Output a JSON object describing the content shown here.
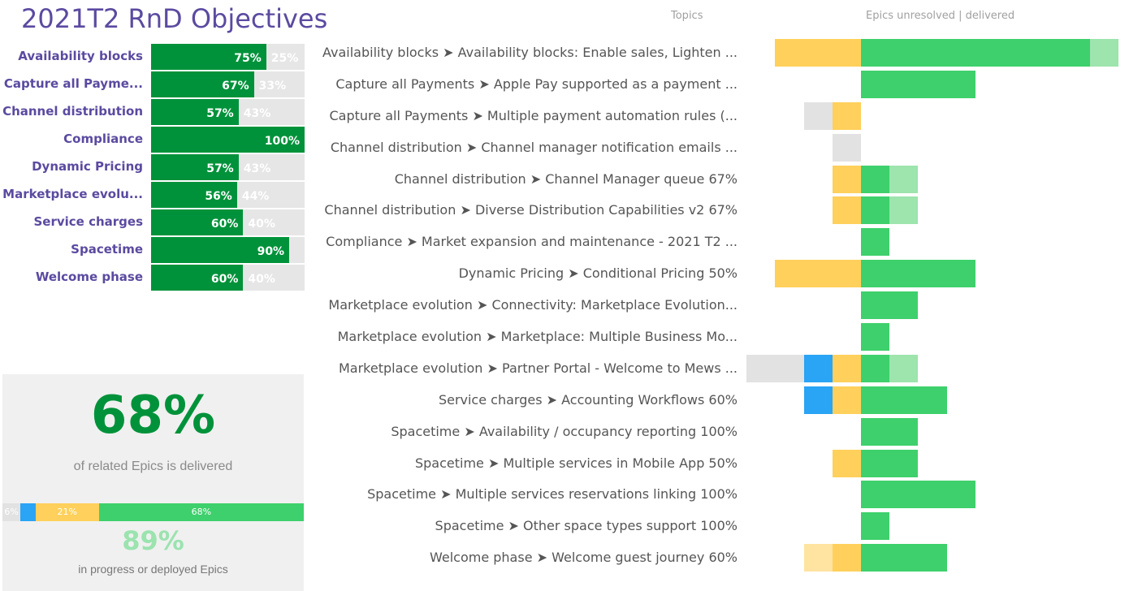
{
  "title": "2021T2 RnD Objectives",
  "colors": {
    "gray": "#e2e2e2",
    "blue": "#2aa4f4",
    "yellow": "#ffd05b",
    "paleyellow": "#ffe3a0",
    "green": "#3ed06c",
    "lightgreen": "#9de4ad",
    "darkgreen": "#00923a",
    "purple": "#5b4aa0"
  },
  "objectives": [
    {
      "name": "Availability blocks",
      "pct": "75%",
      "rest": "25%",
      "fraction": 0.75
    },
    {
      "name": "Capture all Payme...",
      "pct": "67%",
      "rest": "33%",
      "fraction": 0.67
    },
    {
      "name": "Channel distribution",
      "pct": "57%",
      "rest": "43%",
      "fraction": 0.57
    },
    {
      "name": "Compliance",
      "pct": "100%",
      "rest": "",
      "fraction": 1.0
    },
    {
      "name": "Dynamic Pricing",
      "pct": "57%",
      "rest": "43%",
      "fraction": 0.57
    },
    {
      "name": "Marketplace evolu...",
      "pct": "56%",
      "rest": "44%",
      "fraction": 0.56
    },
    {
      "name": "Service charges",
      "pct": "60%",
      "rest": "40%",
      "fraction": 0.6
    },
    {
      "name": "Spacetime",
      "pct": "90%",
      "rest": "",
      "fraction": 0.9
    },
    {
      "name": "Welcome phase",
      "pct": "60%",
      "rest": "40%",
      "fraction": 0.6
    }
  ],
  "summary": {
    "delivered_pct": "68%",
    "delivered_text": "of related Epics is delivered",
    "segments": [
      {
        "label": "6%",
        "value": 6,
        "color": "gray"
      },
      {
        "label": "",
        "value": 5,
        "color": "blue"
      },
      {
        "label": "21%",
        "value": 21,
        "color": "yellow"
      },
      {
        "label": "68%",
        "value": 68,
        "color": "green"
      }
    ],
    "progress_pct": "89%",
    "progress_text": "in progress or deployed Epics"
  },
  "headers": {
    "topics": "Topics",
    "epics": "Epics unresolved | delivered"
  },
  "topics": [
    {
      "label": "Availability blocks ➤ Availability blocks: Enable sales, Lighten ...",
      "unresolved": [
        {
          "c": "yellow",
          "n": 3
        }
      ],
      "delivered": [
        {
          "c": "green",
          "n": 8
        },
        {
          "c": "lightgreen",
          "n": 1
        }
      ]
    },
    {
      "label": "Capture all Payments ➤ Apple Pay supported as a payment ...",
      "unresolved": [],
      "delivered": [
        {
          "c": "green",
          "n": 4
        }
      ]
    },
    {
      "label": "Capture all Payments ➤ Multiple payment automation rules (...",
      "unresolved": [
        {
          "c": "gray",
          "n": 1
        },
        {
          "c": "yellow",
          "n": 1
        }
      ],
      "delivered": []
    },
    {
      "label": "Channel distribution ➤ Channel manager notification emails ...",
      "unresolved": [
        {
          "c": "gray",
          "n": 1
        }
      ],
      "delivered": []
    },
    {
      "label": "Channel distribution ➤ Channel Manager queue 67%",
      "unresolved": [
        {
          "c": "yellow",
          "n": 1
        }
      ],
      "delivered": [
        {
          "c": "green",
          "n": 1
        },
        {
          "c": "lightgreen",
          "n": 1
        }
      ]
    },
    {
      "label": "Channel distribution ➤ Diverse Distribution Capabilities v2 67%",
      "unresolved": [
        {
          "c": "yellow",
          "n": 1
        }
      ],
      "delivered": [
        {
          "c": "green",
          "n": 1
        },
        {
          "c": "lightgreen",
          "n": 1
        }
      ]
    },
    {
      "label": "Compliance ➤ Market expansion and maintenance - 2021 T2 ...",
      "unresolved": [],
      "delivered": [
        {
          "c": "green",
          "n": 1
        }
      ]
    },
    {
      "label": "Dynamic Pricing ➤ Conditional Pricing 50%",
      "unresolved": [
        {
          "c": "yellow",
          "n": 3
        }
      ],
      "delivered": [
        {
          "c": "green",
          "n": 4
        }
      ]
    },
    {
      "label": "Marketplace evolution ➤ Connectivity: Marketplace Evolution...",
      "unresolved": [],
      "delivered": [
        {
          "c": "green",
          "n": 2
        }
      ]
    },
    {
      "label": "Marketplace evolution ➤ Marketplace: Multiple Business Mo...",
      "unresolved": [],
      "delivered": [
        {
          "c": "green",
          "n": 1
        }
      ]
    },
    {
      "label": "Marketplace evolution ➤ Partner Portal - Welcome to Mews ...",
      "unresolved": [
        {
          "c": "gray",
          "n": 2
        },
        {
          "c": "blue",
          "n": 1
        },
        {
          "c": "yellow",
          "n": 1
        }
      ],
      "delivered": [
        {
          "c": "green",
          "n": 1
        },
        {
          "c": "lightgreen",
          "n": 1
        }
      ]
    },
    {
      "label": "Service charges ➤ Accounting Workflows 60%",
      "unresolved": [
        {
          "c": "blue",
          "n": 1
        },
        {
          "c": "yellow",
          "n": 1
        }
      ],
      "delivered": [
        {
          "c": "green",
          "n": 3
        }
      ]
    },
    {
      "label": "Spacetime ➤ Availability / occupancy reporting 100%",
      "unresolved": [],
      "delivered": [
        {
          "c": "green",
          "n": 2
        }
      ]
    },
    {
      "label": "Spacetime ➤ Multiple services in Mobile App 50%",
      "unresolved": [
        {
          "c": "yellow",
          "n": 1
        }
      ],
      "delivered": [
        {
          "c": "green",
          "n": 2
        }
      ]
    },
    {
      "label": "Spacetime ➤ Multiple services reservations linking 100%",
      "unresolved": [],
      "delivered": [
        {
          "c": "green",
          "n": 4
        }
      ]
    },
    {
      "label": "Spacetime ➤ Other space types support 100%",
      "unresolved": [],
      "delivered": [
        {
          "c": "green",
          "n": 1
        }
      ]
    },
    {
      "label": "Welcome phase ➤ Welcome guest journey 60%",
      "unresolved": [
        {
          "c": "paleyellow",
          "n": 1
        },
        {
          "c": "yellow",
          "n": 1
        }
      ],
      "delivered": [
        {
          "c": "green",
          "n": 3
        }
      ]
    }
  ]
}
